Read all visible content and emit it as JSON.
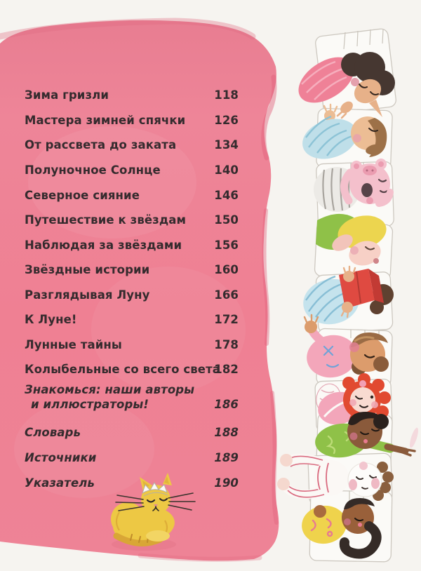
{
  "toc": {
    "entries": [
      {
        "label": "Зима гризли",
        "page": "118",
        "style": "regular"
      },
      {
        "label": "Мастера зимней спячки",
        "page": "126",
        "style": "regular"
      },
      {
        "label": "От рассвета до заката",
        "page": "134",
        "style": "regular"
      },
      {
        "label": "Полуночное Солнце",
        "page": "140",
        "style": "regular"
      },
      {
        "label": "Северное сияние",
        "page": "146",
        "style": "regular"
      },
      {
        "label": "Путешествие к звёздам",
        "page": "150",
        "style": "regular"
      },
      {
        "label": "Наблюдая за звёздами",
        "page": "156",
        "style": "regular"
      },
      {
        "label": "Звёздные истории",
        "page": "160",
        "style": "regular"
      },
      {
        "label": "Разглядывая Луну",
        "page": "166",
        "style": "regular"
      },
      {
        "label": "К Луне!",
        "page": "172",
        "style": "regular"
      },
      {
        "label": "Лунные тайны",
        "page": "178",
        "style": "regular"
      },
      {
        "label": "Колыбельные со всего света",
        "page": "182",
        "style": "regular"
      },
      {
        "label": "Знакомься: наши авторы",
        "label2": "и иллюстраторы!",
        "page": "186",
        "style": "italic"
      },
      {
        "label": "Словарь",
        "page": "188",
        "style": "italic"
      },
      {
        "label": "Источники",
        "page": "189",
        "style": "italic"
      },
      {
        "label": "Указатель",
        "page": "190",
        "style": "italic"
      }
    ]
  },
  "illustrations": {
    "cat": "sleeping-yellow-cat-with-crown",
    "margin_characters": [
      "woman-dark-bun-pink-sweater-sleeping",
      "man-brown-hair-blue-striped-pajamas-sleeping",
      "pink-pig-yawning-gray-striped-shirt",
      "blonde-person-green-shirt-sleeping",
      "child-blue-striped-pajamas-reading-red-book",
      "child-pink-pajamas-brown-hair-sleeping",
      "girl-red-curly-hair-pink-top-smiling",
      "boy-dark-skin-green-shirt-pointing",
      "child-white-sleep-mask-striped-pajamas",
      "girl-dark-skin-ponytail-yellow-top-sleeping"
    ]
  },
  "colors": {
    "paper": "#f6f4f0",
    "pink_blob": "#ee8296",
    "pink_blob_top": "#e77b8f",
    "pink_edge_streak": "#e0607b",
    "text": "#352b2e",
    "cat_body": "#edc844",
    "cat_stripe": "#d9a636",
    "bed_outline": "#cdc8c0"
  }
}
